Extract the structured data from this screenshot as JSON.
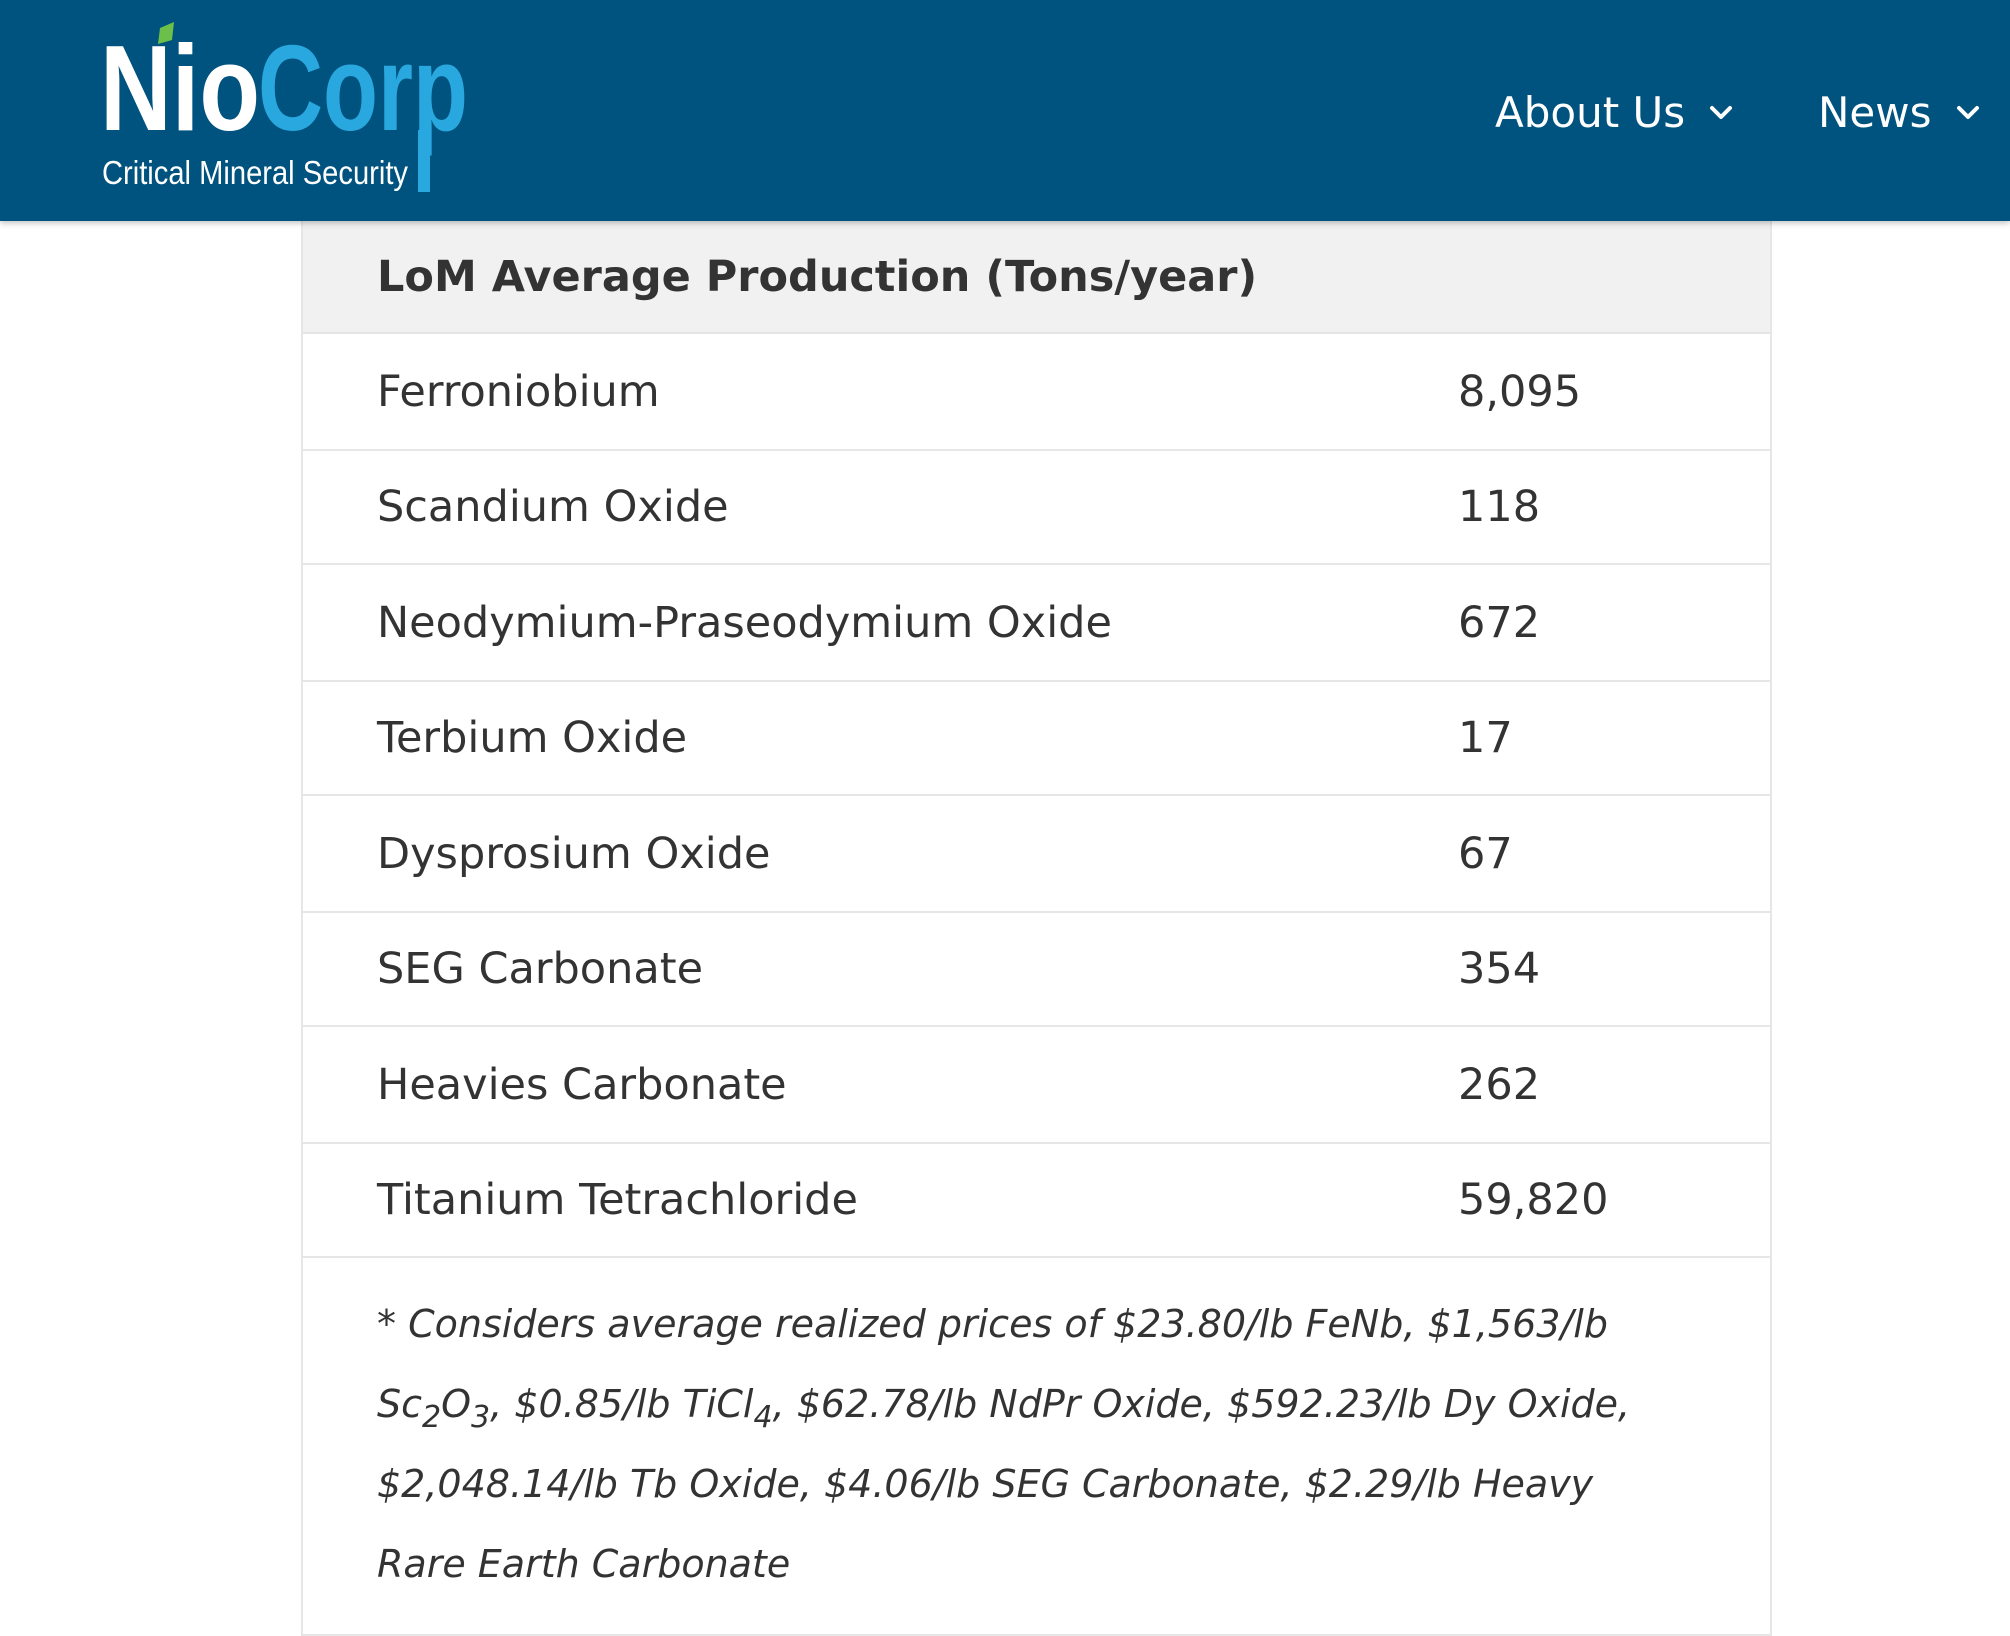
{
  "header": {
    "logo": {
      "brand_part1": "Nio",
      "brand_part2": "Corp",
      "tagline": "Critical Mineral Security"
    },
    "nav": [
      {
        "label": "About Us",
        "icon": "chevron-down-icon"
      },
      {
        "label": "News",
        "icon": "chevron-down-icon"
      }
    ],
    "colors": {
      "header_bg": "#00537f",
      "logo_white": "#ffffff",
      "logo_blue": "#29a8e0",
      "logo_green": "#6cc04a"
    }
  },
  "table": {
    "header": "LoM Average Production (Tons/year)",
    "rows": [
      {
        "name": "Ferroniobium",
        "value": "8,095"
      },
      {
        "name": "Scandium Oxide",
        "value": "118"
      },
      {
        "name": "Neodymium-Praseodymium Oxide",
        "value": "672"
      },
      {
        "name": "Terbium Oxide",
        "value": "17"
      },
      {
        "name": "Dysprosium Oxide",
        "value": "67"
      },
      {
        "name": "SEG Carbonate",
        "value": "354"
      },
      {
        "name": "Heavies Carbonate",
        "value": "262"
      },
      {
        "name": "Titanium Tetrachloride",
        "value": "59,820"
      }
    ],
    "note": {
      "part1": "* Considers average realized prices of $23.80/lb FeNb, $1,563/lb Sc",
      "sub1": "2",
      "part2": "O",
      "sub2": "3",
      "part3": ", $0.85/lb TiCl",
      "sub3": "4",
      "part4": ", $62.78/lb NdPr Oxide, $592.23/lb Dy Oxide, $2,048.14/lb Tb Oxide, $4.06/lb SEG Carbonate, $2.29/lb Heavy Rare Earth Carbonate"
    }
  }
}
